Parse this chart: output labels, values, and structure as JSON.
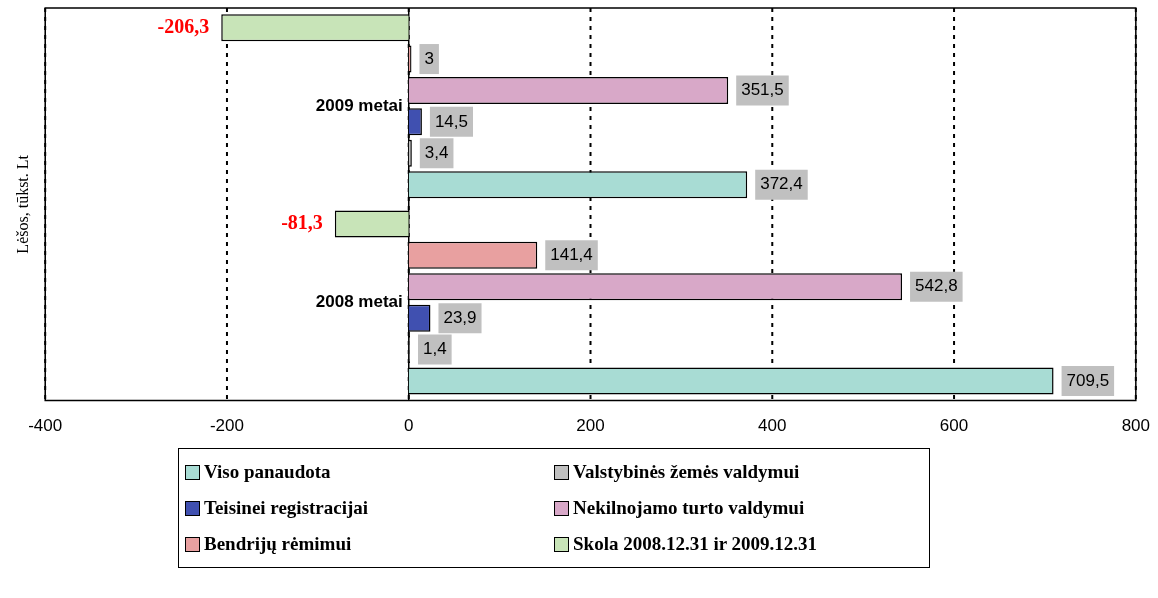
{
  "chart_data": {
    "type": "bar",
    "orientation": "horizontal",
    "ylabel": "Lėšos, tūkst. Lt",
    "categories": [
      "2009 metai",
      "2008 metai"
    ],
    "series": [
      {
        "name": "Viso panaudota",
        "color": "#a8dcd4",
        "values": [
          372.4,
          709.5
        ],
        "value_labels": [
          "372,4",
          "709,5"
        ]
      },
      {
        "name": "Valstybinės žemės valdymui",
        "color": "#c0c0c0",
        "values": [
          3.4,
          1.4
        ],
        "value_labels": [
          "3,4",
          "1,4"
        ]
      },
      {
        "name": "Teisinei registracijai",
        "color": "#4050b0",
        "values": [
          14.5,
          23.9
        ],
        "value_labels": [
          "14,5",
          "23,9"
        ]
      },
      {
        "name": "Nekilnojamo turto valdymui",
        "color": "#d8a8c8",
        "values": [
          351.5,
          542.8
        ],
        "value_labels": [
          "351,5",
          "542,8"
        ]
      },
      {
        "name": "Bendrijų rėmimui",
        "color": "#e8a0a0",
        "values": [
          3,
          141.4
        ],
        "value_labels": [
          "3",
          "141,4"
        ]
      },
      {
        "name": "Skola 2008.12.31 ir 2009.12.31",
        "color": "#c8e4b8",
        "values": [
          -206.3,
          -81.3
        ],
        "value_labels": [
          "-206,3",
          "-81,3"
        ]
      }
    ],
    "xlim": [
      -400,
      800
    ],
    "xticks": [
      -400,
      -200,
      0,
      200,
      400,
      600,
      800
    ],
    "grid": "x",
    "legend": "bottom"
  }
}
